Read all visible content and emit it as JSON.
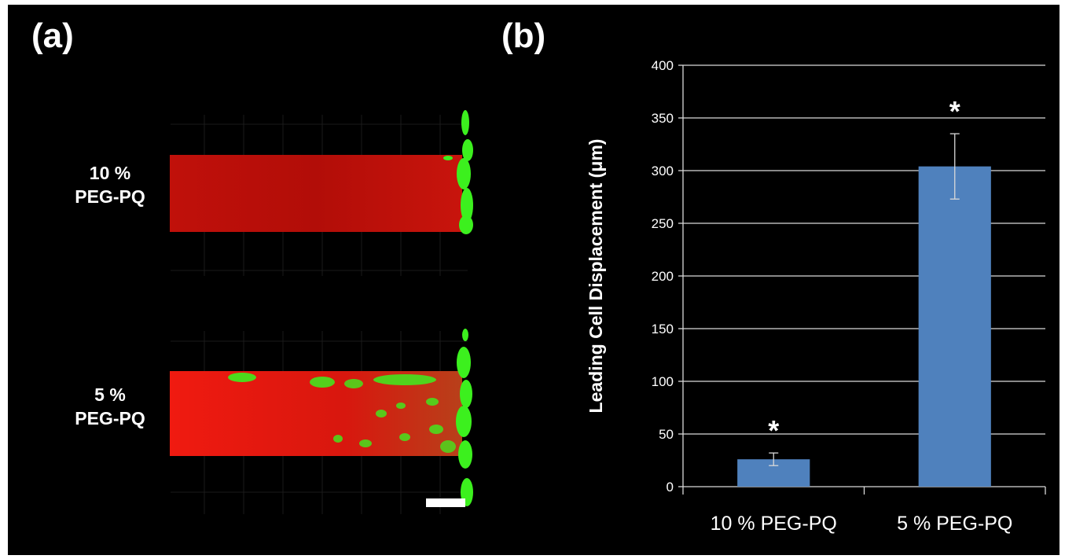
{
  "figure": {
    "panel_a_letter": "(a)",
    "panel_b_letter": "(b)",
    "micrograph": {
      "top_label_line1": "10 %",
      "top_label_line2": "PEG-PQ",
      "bottom_label_line1": "5 %",
      "bottom_label_line2": "PEG-PQ",
      "hydrogel_color": "#e8140c",
      "cell_color": "#3cf01e",
      "scale_bar_color": "#ffffff"
    }
  },
  "chart_data": {
    "type": "bar",
    "categories": [
      "10 % PEG-PQ",
      "5 % PEG-PQ"
    ],
    "values": [
      26,
      304
    ],
    "errors": [
      6,
      31
    ],
    "annotations": [
      "*",
      "*"
    ],
    "title": "",
    "xlabel": "",
    "ylabel": "Leading Cell Displacement (μm)",
    "ylim": [
      0,
      400
    ],
    "yticks": [
      0,
      50,
      100,
      150,
      200,
      250,
      300,
      350,
      400
    ],
    "grid": true,
    "bar_color": "#4f81bd",
    "background": "#000000",
    "text_color": "#ffffff"
  }
}
